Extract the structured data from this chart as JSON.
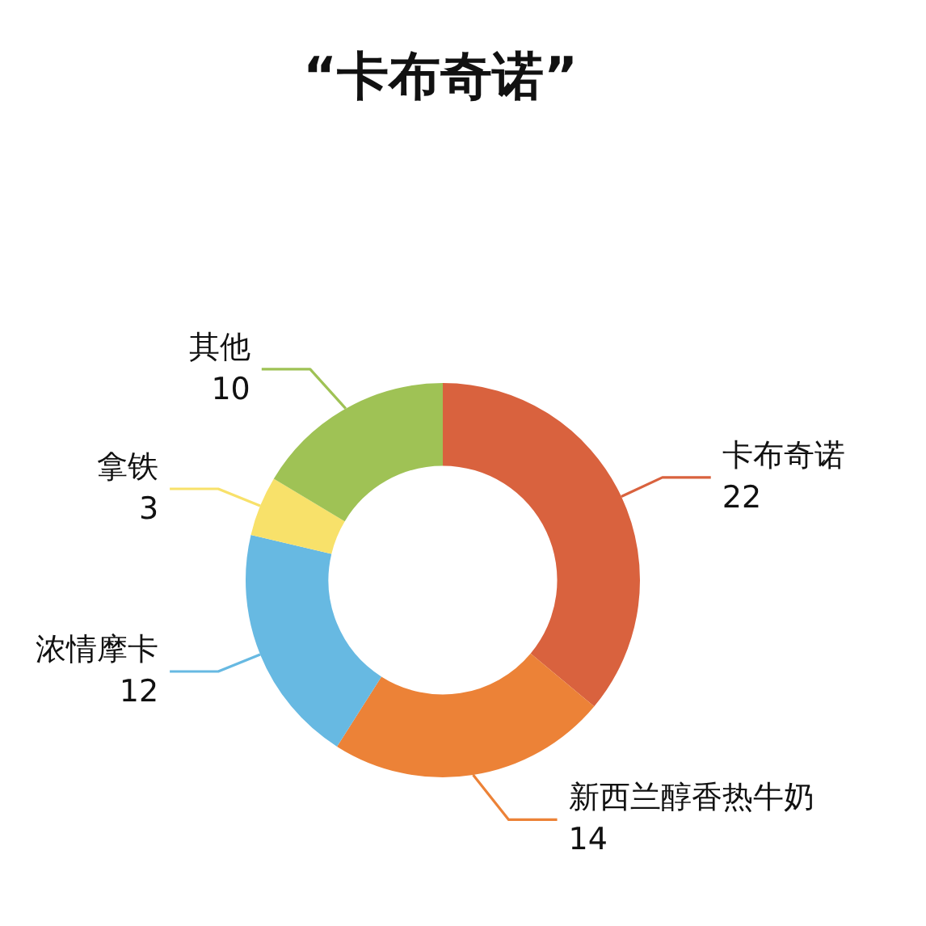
{
  "chart_data": {
    "type": "donut",
    "title": "“卡布奇诺”",
    "categories": [
      "卡布奇诺",
      "新西兰醇香热牛奶",
      "浓情摩卡",
      "拿铁",
      "其他"
    ],
    "values": [
      22,
      14,
      12,
      3,
      10
    ],
    "colors": [
      "#d9623e",
      "#ec8237",
      "#67b9e2",
      "#f8e16a",
      "#9fc255"
    ],
    "data_labels": true
  }
}
